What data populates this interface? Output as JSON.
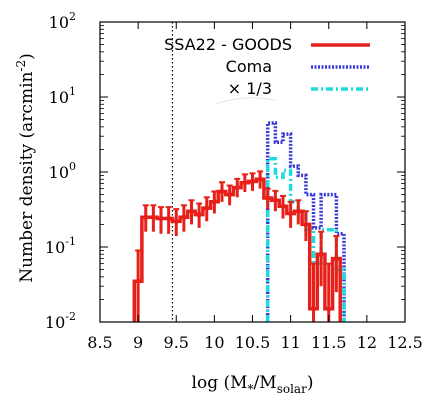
{
  "chart_data": {
    "type": "line",
    "xlabel": "log (M",
    "xlabel_sub1": "*",
    "xlabel_mid": "/M",
    "xlabel_sub2": "solar",
    "xlabel_end": ")",
    "ylabel": "Number density (arcmin",
    "ylabel_sup": "-2",
    "ylabel_end": ")",
    "xlim": [
      8.5,
      12.5
    ],
    "ylim": [
      0.01,
      100
    ],
    "yscale": "log",
    "x_ticks": [
      "8.5",
      "9",
      "9.5",
      "10",
      "10.5",
      "11",
      "11.5",
      "12",
      "12.5"
    ],
    "y_ticks": [
      {
        "base": "10",
        "exp": "-2"
      },
      {
        "base": "10",
        "exp": "-1"
      },
      {
        "base": "10",
        "exp": "0"
      },
      {
        "base": "10",
        "exp": "1"
      },
      {
        "base": "10",
        "exp": "2"
      }
    ],
    "vline_x": 9.45,
    "legend_position": "top-right",
    "series": [
      {
        "name": "SSA22 - GOODS",
        "color": "#e8201a",
        "style": "solid",
        "bins": [
          {
            "x": 9.0,
            "y": 0.035,
            "err_low": 0.01,
            "err_high": 0.09
          },
          {
            "x": 9.1,
            "y": 0.25,
            "err_low": 0.16,
            "err_high": 0.36
          },
          {
            "x": 9.2,
            "y": 0.25,
            "err_low": 0.16,
            "err_high": 0.36
          },
          {
            "x": 9.3,
            "y": 0.24,
            "err_low": 0.15,
            "err_high": 0.34
          },
          {
            "x": 9.4,
            "y": 0.24,
            "err_low": 0.15,
            "err_high": 0.34
          },
          {
            "x": 9.5,
            "y": 0.22,
            "err_low": 0.14,
            "err_high": 0.32
          },
          {
            "x": 9.6,
            "y": 0.25,
            "err_low": 0.16,
            "err_high": 0.36
          },
          {
            "x": 9.7,
            "y": 0.3,
            "err_low": 0.2,
            "err_high": 0.42
          },
          {
            "x": 9.8,
            "y": 0.27,
            "err_low": 0.18,
            "err_high": 0.38
          },
          {
            "x": 9.9,
            "y": 0.33,
            "err_low": 0.22,
            "err_high": 0.46
          },
          {
            "x": 10.0,
            "y": 0.4,
            "err_low": 0.28,
            "err_high": 0.55
          },
          {
            "x": 10.1,
            "y": 0.55,
            "err_low": 0.4,
            "err_high": 0.73
          },
          {
            "x": 10.2,
            "y": 0.5,
            "err_low": 0.36,
            "err_high": 0.66
          },
          {
            "x": 10.3,
            "y": 0.62,
            "err_low": 0.46,
            "err_high": 0.81
          },
          {
            "x": 10.4,
            "y": 0.72,
            "err_low": 0.54,
            "err_high": 0.93
          },
          {
            "x": 10.5,
            "y": 0.75,
            "err_low": 0.56,
            "err_high": 0.96
          },
          {
            "x": 10.6,
            "y": 0.8,
            "err_low": 0.6,
            "err_high": 1.02
          },
          {
            "x": 10.7,
            "y": 0.45,
            "err_low": 0.32,
            "err_high": 0.6
          },
          {
            "x": 10.8,
            "y": 0.42,
            "err_low": 0.3,
            "err_high": 0.56
          },
          {
            "x": 10.9,
            "y": 0.35,
            "err_low": 0.24,
            "err_high": 0.48
          },
          {
            "x": 11.0,
            "y": 0.28,
            "err_low": 0.18,
            "err_high": 0.4
          },
          {
            "x": 11.1,
            "y": 0.3,
            "err_low": 0.2,
            "err_high": 0.42
          },
          {
            "x": 11.2,
            "y": 0.2,
            "err_low": 0.12,
            "err_high": 0.3
          },
          {
            "x": 11.3,
            "y": 0.015,
            "err_low": 0.01,
            "err_high": 0.06
          },
          {
            "x": 11.4,
            "y": 0.08,
            "err_low": 0.03,
            "err_high": 0.16
          },
          {
            "x": 11.5,
            "y": 0.015,
            "err_low": 0.01,
            "err_high": 0.06
          },
          {
            "x": 11.6,
            "y": 0.07,
            "err_low": 0.025,
            "err_high": 0.14
          }
        ]
      },
      {
        "name": "Coma",
        "color": "#3a3ad8",
        "style": "dotted",
        "bins": [
          {
            "x": 10.75,
            "y": 4.5
          },
          {
            "x": 10.85,
            "y": 2.5
          },
          {
            "x": 10.95,
            "y": 3.2
          },
          {
            "x": 11.05,
            "y": 1.2
          },
          {
            "x": 11.15,
            "y": 0.9
          },
          {
            "x": 11.25,
            "y": 0.5
          },
          {
            "x": 11.35,
            "y": 0.18
          },
          {
            "x": 11.45,
            "y": 0.5
          },
          {
            "x": 11.55,
            "y": 0.5
          },
          {
            "x": 11.65,
            "y": 0.15
          }
        ]
      },
      {
        "name": "× 1/3",
        "color": "#1fdcdc",
        "style": "dash-dot",
        "bins": [
          {
            "x": 10.75,
            "y": 1.5
          },
          {
            "x": 10.85,
            "y": 0.85
          },
          {
            "x": 10.95,
            "y": 1.05
          },
          {
            "x": 11.05,
            "y": 0.4
          },
          {
            "x": 11.15,
            "y": 0.3
          },
          {
            "x": 11.25,
            "y": 0.17
          },
          {
            "x": 11.35,
            "y": 0.06
          },
          {
            "x": 11.45,
            "y": 0.17
          },
          {
            "x": 11.55,
            "y": 0.17
          },
          {
            "x": 11.65,
            "y": 0.05
          }
        ]
      }
    ]
  }
}
